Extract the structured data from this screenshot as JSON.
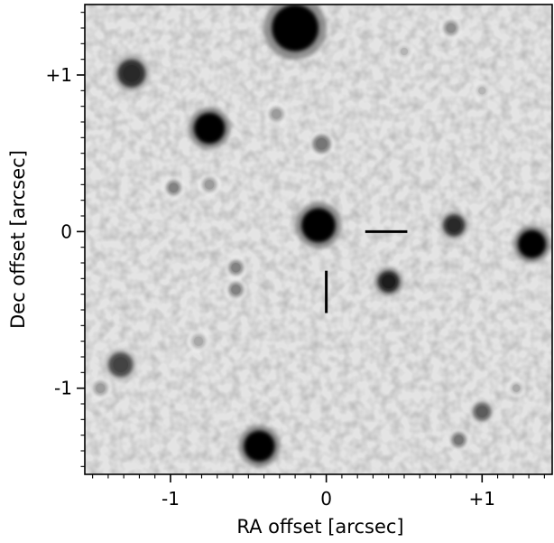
{
  "figure": {
    "type": "astronomical finder chart (inverted grayscale image)",
    "xlabel": "RA offset [arcsec]",
    "ylabel": "Dec offset [arcsec]",
    "x_range": [
      -1.55,
      1.45
    ],
    "y_range": [
      -1.55,
      1.45
    ],
    "x_ticks": [
      {
        "value": -1,
        "label": "-1"
      },
      {
        "value": 0,
        "label": "0"
      },
      {
        "value": 1,
        "label": "+1"
      }
    ],
    "y_ticks": [
      {
        "value": 1,
        "label": "+1"
      },
      {
        "value": 0,
        "label": "0"
      },
      {
        "value": -1,
        "label": "-1"
      }
    ],
    "minor_tick_step": 0.1,
    "colormap": "inverted grayscale",
    "marker": {
      "type": "crosshair reticle",
      "target_position": [
        0,
        0
      ],
      "horizontal_arm": {
        "from": [
          0.25,
          0
        ],
        "to": [
          0.52,
          0
        ]
      },
      "vertical_arm": {
        "from": [
          0,
          -0.25
        ],
        "to": [
          0,
          -0.52
        ]
      }
    },
    "sources": [
      {
        "ra": -0.2,
        "dec": 1.3,
        "size": 0.15,
        "brightness": 1.0
      },
      {
        "ra": -1.25,
        "dec": 1.01,
        "size": 0.09,
        "brightness": 0.8
      },
      {
        "ra": -0.75,
        "dec": 0.66,
        "size": 0.1,
        "brightness": 1.0
      },
      {
        "ra": -0.05,
        "dec": 0.04,
        "size": 0.11,
        "brightness": 1.0
      },
      {
        "ra": 0.82,
        "dec": 0.04,
        "size": 0.07,
        "brightness": 0.8
      },
      {
        "ra": 1.32,
        "dec": -0.08,
        "size": 0.09,
        "brightness": 1.0
      },
      {
        "ra": 0.4,
        "dec": -0.32,
        "size": 0.07,
        "brightness": 0.85
      },
      {
        "ra": -0.58,
        "dec": -0.23,
        "size": 0.05,
        "brightness": 0.45
      },
      {
        "ra": -0.58,
        "dec": -0.37,
        "size": 0.05,
        "brightness": 0.45
      },
      {
        "ra": -1.32,
        "dec": -0.85,
        "size": 0.08,
        "brightness": 0.7
      },
      {
        "ra": -0.43,
        "dec": -1.37,
        "size": 0.1,
        "brightness": 1.0
      },
      {
        "ra": 1.0,
        "dec": -1.15,
        "size": 0.06,
        "brightness": 0.6
      },
      {
        "ra": 0.85,
        "dec": -1.33,
        "size": 0.05,
        "brightness": 0.5
      },
      {
        "ra": -0.03,
        "dec": 0.56,
        "size": 0.06,
        "brightness": 0.5
      },
      {
        "ra": -0.98,
        "dec": 0.28,
        "size": 0.05,
        "brightness": 0.45
      },
      {
        "ra": -0.75,
        "dec": 0.3,
        "size": 0.05,
        "brightness": 0.35
      },
      {
        "ra": -0.32,
        "dec": 0.75,
        "size": 0.05,
        "brightness": 0.35
      },
      {
        "ra": 0.8,
        "dec": 1.3,
        "size": 0.05,
        "brightness": 0.4
      },
      {
        "ra": -1.45,
        "dec": -1.0,
        "size": 0.05,
        "brightness": 0.35
      },
      {
        "ra": -0.82,
        "dec": -0.7,
        "size": 0.05,
        "brightness": 0.3
      },
      {
        "ra": 1.22,
        "dec": -1.0,
        "size": 0.04,
        "brightness": 0.3
      },
      {
        "ra": 1.0,
        "dec": 0.9,
        "size": 0.04,
        "brightness": 0.25
      },
      {
        "ra": 0.5,
        "dec": 1.15,
        "size": 0.04,
        "brightness": 0.25
      }
    ]
  }
}
